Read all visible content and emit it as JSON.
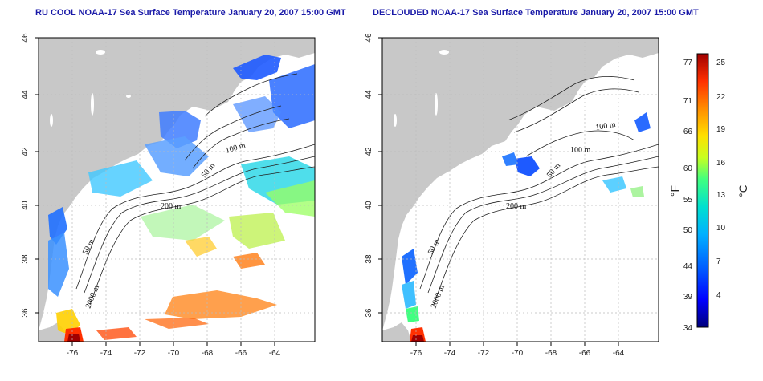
{
  "panels": [
    {
      "id": "left",
      "title": "RU COOL NOAA-17 Sea Surface Temperature January 20, 2007 15:00 GMT",
      "x_ticks": [
        "-76",
        "-74",
        "-72",
        "-70",
        "-68",
        "-66",
        "-64"
      ],
      "y_ticks": [
        "36",
        "38",
        "40",
        "42",
        "44",
        "46"
      ],
      "contour_labels": [
        "100 m",
        "50 m",
        "200 m",
        "50 m",
        "2000 m"
      ]
    },
    {
      "id": "right",
      "title": "DECLOUDED NOAA-17 Sea Surface Temperature January 20, 2007 15:00 GMT",
      "x_ticks": [
        "-76",
        "-74",
        "-72",
        "-70",
        "-68",
        "-66",
        "-64"
      ],
      "y_ticks": [
        "36",
        "38",
        "40",
        "42",
        "44",
        "46"
      ],
      "contour_labels": [
        "100 m",
        "100 m",
        "50 m",
        "200 m",
        "50 m",
        "2000 m"
      ]
    }
  ],
  "colorbar": {
    "fahrenheit_label": "°F",
    "celsius_label": "°C",
    "fahrenheit_ticks": [
      "77",
      "71",
      "66",
      "60",
      "55",
      "50",
      "44",
      "39",
      "34"
    ],
    "celsius_ticks": [
      "25",
      "22",
      "19",
      "16",
      "13",
      "10",
      "7",
      "4"
    ],
    "colors": [
      "#00007a",
      "#0000ff",
      "#0055ff",
      "#00a8ff",
      "#00e0e0",
      "#40ff80",
      "#c8ff20",
      "#ffe000",
      "#ff8c00",
      "#ff3000",
      "#a00000"
    ]
  },
  "colors": {
    "land": "#c8c8c8",
    "water": "#ffffff",
    "title": "#1a1aa8",
    "grid": "#bbbbbb"
  }
}
